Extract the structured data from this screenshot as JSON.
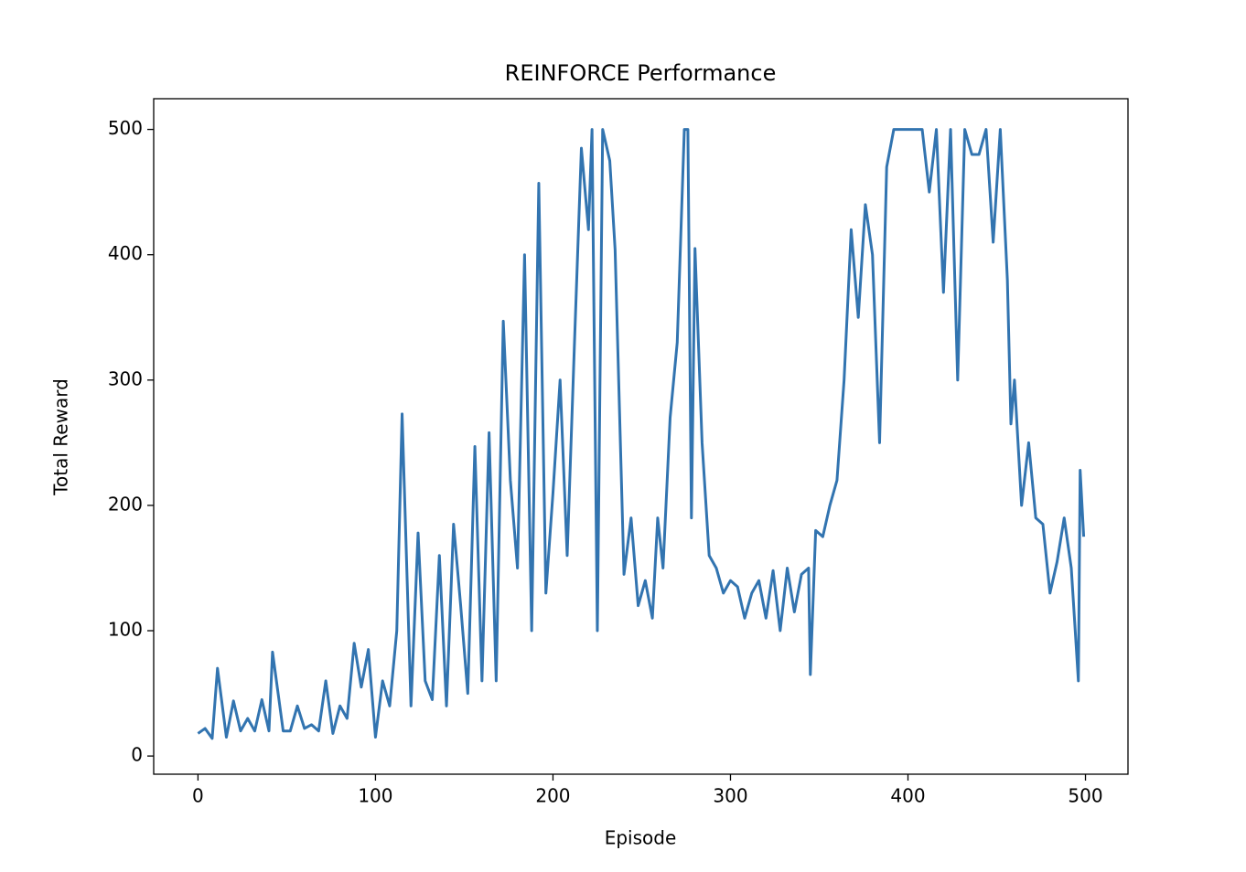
{
  "chart_data": {
    "type": "line",
    "title": "REINFORCE Performance",
    "xlabel": "Episode",
    "ylabel": "Total Reward",
    "x": [
      0,
      4,
      8,
      11,
      16,
      20,
      24,
      28,
      32,
      36,
      40,
      42,
      48,
      52,
      56,
      60,
      64,
      68,
      72,
      76,
      80,
      84,
      88,
      92,
      96,
      100,
      104,
      108,
      112,
      115,
      120,
      124,
      128,
      132,
      136,
      140,
      144,
      148,
      152,
      156,
      160,
      164,
      168,
      172,
      176,
      180,
      184,
      188,
      192,
      196,
      200,
      204,
      208,
      212,
      216,
      220,
      222,
      225,
      228,
      232,
      235,
      240,
      244,
      248,
      252,
      256,
      259,
      262,
      266,
      270,
      274,
      276,
      278,
      280,
      284,
      288,
      292,
      296,
      300,
      304,
      308,
      312,
      316,
      320,
      324,
      328,
      332,
      336,
      340,
      344,
      345,
      348,
      352,
      356,
      360,
      364,
      368,
      372,
      376,
      380,
      384,
      388,
      392,
      396,
      400,
      404,
      408,
      412,
      416,
      420,
      424,
      428,
      432,
      436,
      440,
      444,
      448,
      452,
      456,
      458,
      460,
      464,
      468,
      472,
      476,
      480,
      484,
      488,
      492,
      496,
      497,
      499
    ],
    "values": [
      18,
      22,
      14,
      70,
      15,
      44,
      20,
      30,
      20,
      45,
      20,
      83,
      20,
      20,
      40,
      22,
      25,
      20,
      60,
      18,
      40,
      30,
      90,
      55,
      85,
      15,
      60,
      40,
      100,
      273,
      40,
      178,
      60,
      45,
      160,
      40,
      185,
      120,
      50,
      247,
      60,
      258,
      60,
      347,
      220,
      150,
      400,
      100,
      457,
      130,
      210,
      300,
      160,
      325,
      485,
      420,
      500,
      100,
      500,
      475,
      404,
      145,
      190,
      120,
      140,
      110,
      190,
      150,
      270,
      330,
      500,
      500,
      190,
      405,
      250,
      160,
      150,
      130,
      140,
      135,
      110,
      130,
      140,
      110,
      148,
      100,
      150,
      115,
      145,
      150,
      65,
      180,
      175,
      200,
      220,
      300,
      420,
      350,
      440,
      400,
      250,
      470,
      500,
      500,
      500,
      500,
      500,
      450,
      500,
      370,
      500,
      300,
      500,
      480,
      480,
      500,
      410,
      500,
      380,
      265,
      300,
      200,
      250,
      190,
      185,
      130,
      155,
      190,
      150,
      60,
      228,
      175
    ],
    "color": "#3274b0",
    "xlim": [
      -24.95,
      523.95
    ],
    "xticks": [
      0,
      100,
      200,
      300,
      400,
      500
    ],
    "ylim": [
      -14.5,
      524.5
    ],
    "yticks": [
      0,
      100,
      200,
      300,
      400,
      500
    ],
    "grid": false
  }
}
